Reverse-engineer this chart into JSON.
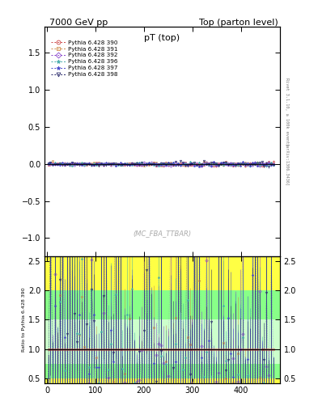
{
  "title_left": "7000 GeV pp",
  "title_right": "Top (parton level)",
  "plot_title": "pT (top)",
  "watermark": "(MC_FBA_TTBAR)",
  "right_label": "Rivet 3.1.10, ≥ 100k events",
  "right_label2": "[arXiv:1306.3436]",
  "ylabel_ratio": "Ratio to Pythia 6.428 390",
  "series": [
    {
      "label": "Pythia 6.428 390",
      "color": "#cc4444",
      "marker": "o",
      "mfc": "none"
    },
    {
      "label": "Pythia 6.428 391",
      "color": "#cc8844",
      "marker": "s",
      "mfc": "none"
    },
    {
      "label": "Pythia 6.428 392",
      "color": "#8844cc",
      "marker": "D",
      "mfc": "none"
    },
    {
      "label": "Pythia 6.428 396",
      "color": "#44aaaa",
      "marker": "*",
      "mfc": "none"
    },
    {
      "label": "Pythia 6.428 397",
      "color": "#4444cc",
      "marker": "*",
      "mfc": "none"
    },
    {
      "label": "Pythia 6.428 398",
      "color": "#222266",
      "marker": "v",
      "mfc": "none"
    }
  ],
  "main_ylim": [
    -1.25,
    1.85
  ],
  "main_yticks": [
    -1.0,
    -0.5,
    0.0,
    0.5,
    1.0,
    1.5
  ],
  "ratio_ylim": [
    0.42,
    2.58
  ],
  "ratio_yticks": [
    0.5,
    1.0,
    1.5,
    2.0,
    2.5
  ],
  "xlim": [
    -5,
    480
  ],
  "background_color": "#ffffff",
  "ratio_bg_yellow": "#ffff44",
  "ratio_bg_green": "#88ff88",
  "ratio_bg_lightgreen": "#ccffcc",
  "n_bins": 95
}
